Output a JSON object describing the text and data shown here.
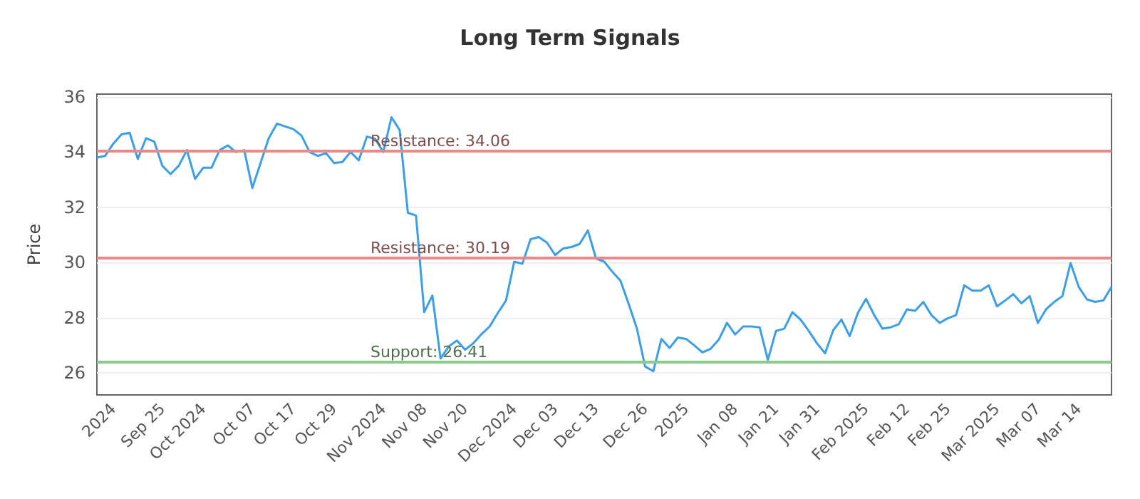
{
  "chart_data": {
    "type": "line",
    "title": "Long Term Signals",
    "ylabel": "Price",
    "categories": [
      null,
      null,
      "2024",
      null,
      null,
      null,
      null,
      null,
      "Sep 25",
      null,
      null,
      null,
      null,
      "Oct 2024",
      null,
      null,
      null,
      null,
      null,
      "Oct 07",
      null,
      null,
      null,
      null,
      "Oct 17",
      null,
      null,
      null,
      null,
      "Oct 29",
      null,
      null,
      null,
      null,
      null,
      "Nov 2024",
      null,
      null,
      null,
      null,
      "Nov 08",
      null,
      null,
      null,
      null,
      "Nov 20",
      null,
      null,
      null,
      null,
      null,
      "Dec 2024",
      null,
      null,
      null,
      null,
      "Dec 03",
      null,
      null,
      null,
      null,
      "Dec 13",
      null,
      null,
      null,
      null,
      null,
      "Dec 26",
      null,
      null,
      null,
      null,
      "2025",
      null,
      null,
      null,
      null,
      null,
      "Jan 08",
      null,
      null,
      null,
      null,
      "Jan 21",
      null,
      null,
      null,
      null,
      "Jan 31",
      null,
      null,
      null,
      null,
      null,
      "Feb 2025",
      null,
      null,
      null,
      null,
      "Feb 12",
      null,
      null,
      null,
      null,
      "Feb 25",
      null,
      null,
      null,
      null,
      null,
      "Mar 2025",
      null,
      null,
      null,
      null,
      "Mar 07",
      null,
      null,
      null,
      null,
      "Mar 14",
      null,
      null,
      null,
      null
    ],
    "series": [
      {
        "color": "#3a9fe6",
        "values": [
          33.8,
          33.86,
          34.3,
          34.64,
          34.7,
          33.75,
          34.5,
          34.38,
          33.5,
          33.2,
          33.5,
          34.07,
          33.03,
          33.43,
          33.43,
          34.07,
          34.24,
          34.0,
          34.07,
          32.7,
          33.6,
          34.5,
          35.03,
          34.93,
          34.83,
          34.6,
          34.0,
          33.86,
          33.96,
          33.6,
          33.64,
          34.0,
          33.7,
          34.56,
          34.48,
          34.0,
          35.26,
          34.8,
          31.8,
          31.7,
          28.2,
          28.8,
          26.52,
          26.96,
          27.17,
          26.84,
          27.07,
          27.4,
          27.68,
          28.17,
          28.62,
          30.03,
          29.95,
          30.84,
          30.92,
          30.72,
          30.27,
          30.51,
          30.56,
          30.67,
          31.16,
          30.14,
          30.03,
          29.66,
          29.33,
          28.49,
          27.6,
          26.23,
          26.06,
          27.23,
          26.9,
          27.28,
          27.23,
          27.0,
          26.74,
          26.87,
          27.2,
          27.81,
          27.39,
          27.68,
          27.68,
          27.65,
          26.47,
          27.52,
          27.6,
          28.2,
          27.93,
          27.52,
          27.07,
          26.71,
          27.55,
          27.93,
          27.33,
          28.17,
          28.68,
          28.09,
          27.6,
          27.65,
          27.76,
          28.3,
          28.25,
          28.57,
          28.09,
          27.81,
          27.98,
          28.09,
          29.17,
          28.98,
          28.98,
          29.17,
          28.41,
          28.62,
          28.85,
          28.52,
          28.78,
          27.81,
          28.3,
          28.57,
          28.78,
          29.98,
          29.11,
          28.66,
          28.57,
          28.62,
          29.11
        ]
      }
    ],
    "ylim": [
      25.2,
      36.1
    ],
    "yticks": [
      26,
      28,
      30,
      32,
      34,
      36
    ],
    "grid": "y",
    "marker": "none",
    "line_style": "solid",
    "ref_lines": [
      {
        "axis": "y",
        "value": 34.06,
        "label": "Resistance: 34.06",
        "color": "#e88a8a"
      },
      {
        "axis": "y",
        "value": 30.19,
        "label": "Resistance: 30.19",
        "color": "#e88a8a"
      },
      {
        "axis": "y",
        "value": 26.41,
        "label": "Support: 26.41",
        "color": "#8cc98c"
      }
    ]
  }
}
